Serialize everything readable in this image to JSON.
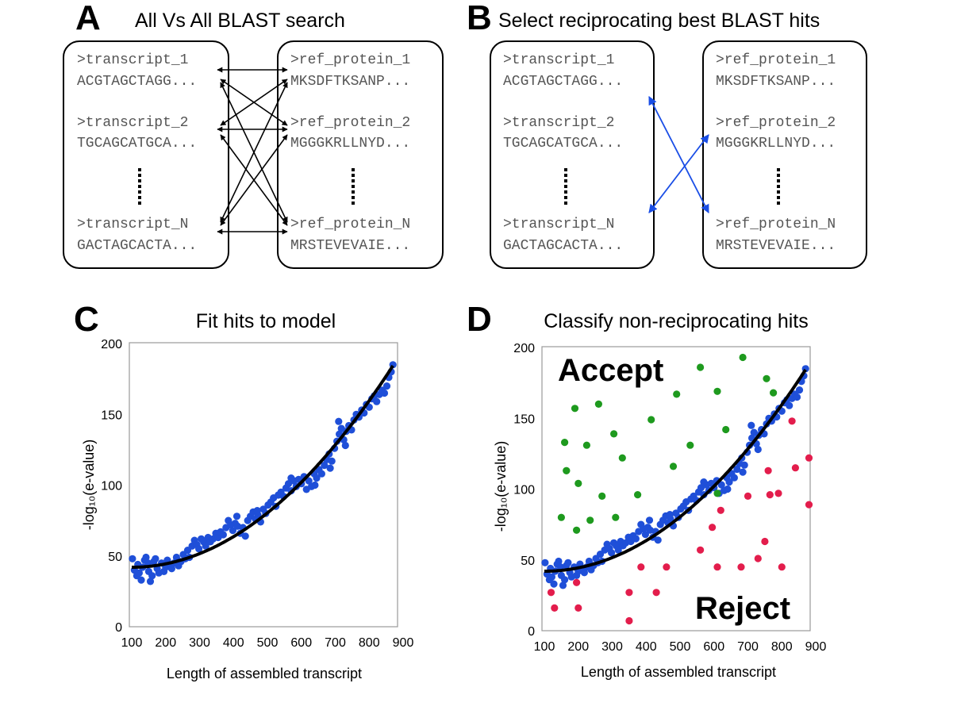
{
  "colors": {
    "blue": "#1f4fd8",
    "green": "#1e9a1e",
    "red": "#e31d4c",
    "arrow_blue": "#1a4ee6",
    "curve": "#000000"
  },
  "panels": {
    "a": {
      "letter": "A",
      "title": "All Vs All BLAST search",
      "left_box": [
        {
          "header": ">transcript_1",
          "seq": "ACGTAGCTAGG..."
        },
        {
          "header": ">transcript_2",
          "seq": "TGCAGCATGCA..."
        },
        {
          "header": ">transcript_N",
          "seq": "GACTAGCACTA..."
        }
      ],
      "right_box": [
        {
          "header": ">ref_protein_1",
          "seq": "MKSDFTKSANP..."
        },
        {
          "header": ">ref_protein_2",
          "seq": "MGGGKRLLNYD..."
        },
        {
          "header": ">ref_protein_N",
          "seq": "MRSTEVEVAIE..."
        }
      ]
    },
    "b": {
      "letter": "B",
      "title": "Select reciprocating best BLAST hits",
      "left_box": [
        {
          "header": ">transcript_1",
          "seq": "ACGTAGCTAGG..."
        },
        {
          "header": ">transcript_2",
          "seq": "TGCAGCATGCA..."
        },
        {
          "header": ">transcript_N",
          "seq": "GACTAGCACTA..."
        }
      ],
      "right_box": [
        {
          "header": ">ref_protein_1",
          "seq": "MKSDFTKSANP..."
        },
        {
          "header": ">ref_protein_2",
          "seq": "MGGGKRLLNYD..."
        },
        {
          "header": ">ref_protein_N",
          "seq": "MRSTEVEVAIE..."
        }
      ]
    },
    "c": {
      "letter": "C"
    },
    "d": {
      "letter": "D",
      "accept_label": "Accept",
      "reject_label": "Reject"
    }
  },
  "chart_data": [
    {
      "type": "scatter",
      "title": "Fit hits to model",
      "xlabel": "Length of assembled transcript",
      "ylabel": "-log₁₀(e-value)",
      "xlim": [
        100,
        900
      ],
      "ylim": [
        0,
        200
      ],
      "xticks": [
        "100",
        "200",
        "300",
        "400",
        "500",
        "600",
        "700",
        "800",
        "900"
      ],
      "yticks": [
        "0",
        "50",
        "100",
        "150",
        "200"
      ],
      "fit_curve": {
        "type": "quadratic",
        "x_range": [
          100,
          870
        ],
        "coefficients": {
          "a": 0.00024,
          "vertex_x": 100,
          "vertex_y": 42
        }
      },
      "series": [
        {
          "name": "hits",
          "color": "blue",
          "points": [
            [
              102,
              48
            ],
            [
              108,
              40
            ],
            [
              115,
              36
            ],
            [
              118,
              44
            ],
            [
              122,
              38
            ],
            [
              128,
              33
            ],
            [
              132,
              42
            ],
            [
              138,
              47
            ],
            [
              142,
              49
            ],
            [
              148,
              45
            ],
            [
              150,
              39
            ],
            [
              155,
              32
            ],
            [
              160,
              36
            ],
            [
              165,
              46
            ],
            [
              170,
              48
            ],
            [
              175,
              41
            ],
            [
              180,
              38
            ],
            [
              188,
              45
            ],
            [
              195,
              39
            ],
            [
              200,
              42
            ],
            [
              205,
              47
            ],
            [
              212,
              44
            ],
            [
              218,
              41
            ],
            [
              225,
              45
            ],
            [
              232,
              49
            ],
            [
              238,
              43
            ],
            [
              245,
              46
            ],
            [
              252,
              51
            ],
            [
              258,
              48
            ],
            [
              265,
              54
            ],
            [
              270,
              49
            ],
            [
              278,
              57
            ],
            [
              285,
              61
            ],
            [
              292,
              58
            ],
            [
              298,
              55
            ],
            [
              305,
              62
            ],
            [
              312,
              60
            ],
            [
              318,
              57
            ],
            [
              325,
              63
            ],
            [
              332,
              60
            ],
            [
              340,
              62
            ],
            [
              348,
              66
            ],
            [
              355,
              63
            ],
            [
              362,
              67
            ],
            [
              370,
              65
            ],
            [
              378,
              70
            ],
            [
              385,
              75
            ],
            [
              392,
              72
            ],
            [
              398,
              68
            ],
            [
              405,
              73
            ],
            [
              412,
              71
            ],
            [
              420,
              66
            ],
            [
              428,
              70
            ],
            [
              435,
              64
            ],
            [
              442,
              75
            ],
            [
              450,
              78
            ],
            [
              458,
              81
            ],
            [
              465,
              76
            ],
            [
              472,
              79
            ],
            [
              480,
              74
            ],
            [
              488,
              83
            ],
            [
              495,
              80
            ],
            [
              502,
              86
            ],
            [
              510,
              88
            ],
            [
              518,
              91
            ],
            [
              525,
              85
            ],
            [
              532,
              93
            ],
            [
              540,
              95
            ],
            [
              548,
              92
            ],
            [
              555,
              98
            ],
            [
              562,
              101
            ],
            [
              570,
              96
            ],
            [
              578,
              103
            ],
            [
              585,
              99
            ],
            [
              592,
              104
            ],
            [
              600,
              101
            ],
            [
              608,
              106
            ],
            [
              615,
              97
            ],
            [
              622,
              103
            ],
            [
              630,
              99
            ],
            [
              638,
              108
            ],
            [
              645,
              105
            ],
            [
              652,
              111
            ],
            [
              660,
              108
            ],
            [
              668,
              114
            ],
            [
              675,
              118
            ],
            [
              682,
              122
            ],
            [
              690,
              117
            ],
            [
              698,
              126
            ],
            [
              705,
              131
            ],
            [
              712,
              136
            ],
            [
              718,
              140
            ],
            [
              725,
              132
            ],
            [
              732,
              138
            ],
            [
              740,
              142
            ],
            [
              748,
              139
            ],
            [
              755,
              146
            ],
            [
              762,
              150
            ],
            [
              770,
              148
            ],
            [
              778,
              153
            ],
            [
              785,
              151
            ],
            [
              792,
              157
            ],
            [
              800,
              155
            ],
            [
              808,
              161
            ],
            [
              815,
              163
            ],
            [
              822,
              159
            ],
            [
              830,
              164
            ],
            [
              838,
              167
            ],
            [
              845,
              165
            ],
            [
              852,
              170
            ],
            [
              858,
              176
            ],
            [
              865,
              180
            ],
            [
              870,
              185
            ],
            [
              710,
              145
            ],
            [
              730,
              128
            ],
            [
              685,
              112
            ],
            [
              640,
              100
            ],
            [
              570,
              105
            ],
            [
              470,
              82
            ],
            [
              410,
              78
            ]
          ]
        }
      ]
    },
    {
      "type": "scatter",
      "title": "Classify non-reciprocating hits",
      "xlabel": "Length of assembled transcript",
      "ylabel": "-log₁₀(e-value)",
      "xlim": [
        100,
        900
      ],
      "ylim": [
        0,
        200
      ],
      "xticks": [
        "100",
        "200",
        "300",
        "400",
        "500",
        "600",
        "700",
        "800",
        "900"
      ],
      "yticks": [
        "0",
        "50",
        "100",
        "150",
        "200"
      ],
      "fit_curve": {
        "type": "quadratic",
        "x_range": [
          100,
          870
        ],
        "coefficients": {
          "a": 0.00024,
          "vertex_x": 100,
          "vertex_y": 42
        }
      },
      "series": [
        {
          "name": "hits",
          "color": "blue",
          "points": "same as chart 1"
        },
        {
          "name": "accept",
          "color": "green",
          "points": [
            [
              150,
              80
            ],
            [
              160,
              133
            ],
            [
              165,
              113
            ],
            [
              190,
              157
            ],
            [
              195,
              71
            ],
            [
              200,
              104
            ],
            [
              225,
              131
            ],
            [
              235,
              78
            ],
            [
              260,
              160
            ],
            [
              270,
              95
            ],
            [
              305,
              139
            ],
            [
              310,
              80
            ],
            [
              330,
              122
            ],
            [
              375,
              96
            ],
            [
              415,
              149
            ],
            [
              480,
              116
            ],
            [
              490,
              167
            ],
            [
              530,
              131
            ],
            [
              560,
              186
            ],
            [
              610,
              169
            ],
            [
              635,
              142
            ],
            [
              685,
              193
            ],
            [
              755,
              178
            ],
            [
              775,
              168
            ],
            [
              610,
              97
            ],
            [
              165,
              113
            ]
          ]
        },
        {
          "name": "reject",
          "color": "red",
          "points": [
            [
              120,
              27
            ],
            [
              130,
              16
            ],
            [
              195,
              34
            ],
            [
              200,
              16
            ],
            [
              350,
              27
            ],
            [
              350,
              7
            ],
            [
              385,
              45
            ],
            [
              430,
              27
            ],
            [
              460,
              45
            ],
            [
              560,
              57
            ],
            [
              595,
              73
            ],
            [
              610,
              45
            ],
            [
              620,
              85
            ],
            [
              680,
              45
            ],
            [
              700,
              95
            ],
            [
              730,
              51
            ],
            [
              750,
              63
            ],
            [
              760,
              113
            ],
            [
              765,
              96
            ],
            [
              790,
              97
            ],
            [
              800,
              45
            ],
            [
              830,
              148
            ],
            [
              840,
              115
            ],
            [
              880,
              122
            ],
            [
              880,
              89
            ]
          ]
        }
      ]
    }
  ]
}
